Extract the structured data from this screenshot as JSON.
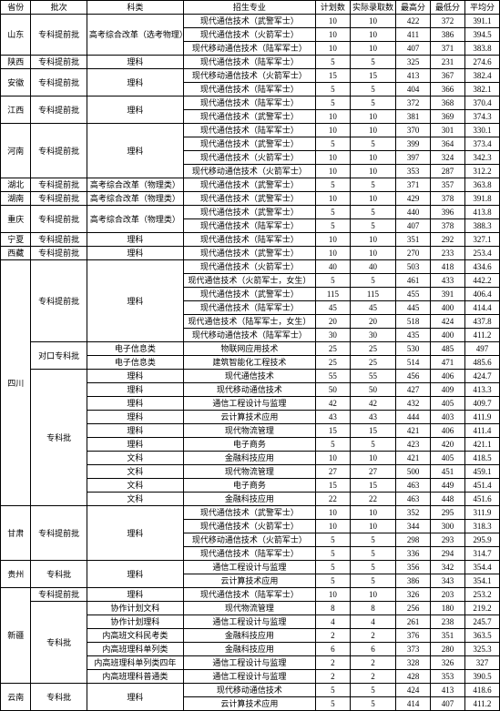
{
  "header": [
    "省份",
    "批次",
    "科类",
    "招生专业",
    "计划数",
    "实际录取数",
    "最高分",
    "最低分",
    "平均分"
  ],
  "rows": [
    [
      "山东",
      "专科提前批",
      "高考综合改革（选考物理）",
      "现代通信技术（武警军士）",
      "10",
      "10",
      "422",
      "372",
      "391.1"
    ],
    [
      "",
      "",
      "",
      "现代通信技术（火箭军士）",
      "10",
      "10",
      "411",
      "386",
      "394.5"
    ],
    [
      "",
      "",
      "",
      "现代移动通信技术（陆军军士）",
      "10",
      "10",
      "407",
      "371",
      "383.8"
    ],
    [
      "陕西",
      "专科提前批",
      "理科",
      "现代通信技术（陆军军士）",
      "5",
      "5",
      "325",
      "231",
      "274.6"
    ],
    [
      "安徽",
      "专科提前批",
      "理科",
      "现代移动通信技术（火箭军士）",
      "15",
      "15",
      "413",
      "367",
      "382.4"
    ],
    [
      "",
      "",
      "",
      "现代通信技术（陆军军士）",
      "5",
      "5",
      "404",
      "366",
      "382.1"
    ],
    [
      "江西",
      "专科提前批",
      "理科",
      "现代通信技术（陆军军士）",
      "5",
      "5",
      "372",
      "368",
      "370.4"
    ],
    [
      "",
      "",
      "",
      "现代通信技术（武警军士）",
      "10",
      "10",
      "381",
      "369",
      "374.3"
    ],
    [
      "河南",
      "专科提前批",
      "理科",
      "现代通信技术（陆军军士）",
      "10",
      "10",
      "370",
      "301",
      "330.1"
    ],
    [
      "",
      "",
      "",
      "现代通信技术（武警军士）",
      "5",
      "5",
      "399",
      "364",
      "373.4"
    ],
    [
      "",
      "",
      "",
      "现代通信技术（火箭军士）",
      "10",
      "10",
      "397",
      "324",
      "342.3"
    ],
    [
      "",
      "",
      "",
      "现代移动通信技术（火箭军士）",
      "10",
      "10",
      "353",
      "287",
      "312.2"
    ],
    [
      "湖北",
      "专科提前批",
      "高考综合改革（物理类）",
      "现代通信技术（武警军士）",
      "5",
      "5",
      "371",
      "357",
      "363.8"
    ],
    [
      "湖南",
      "专科提前批",
      "高考综合改革（物理类）",
      "现代通信技术（武警军士）",
      "10",
      "10",
      "429",
      "378",
      "391.8"
    ],
    [
      "重庆",
      "专科提前批",
      "高考综合改革（物理类）",
      "现代通信技术（武警军士）",
      "5",
      "5",
      "440",
      "396",
      "413.8"
    ],
    [
      "",
      "",
      "",
      "现代通信技术（陆军军士）",
      "5",
      "5",
      "407",
      "378",
      "388.3"
    ],
    [
      "宁夏",
      "专科提前批",
      "理科",
      "现代通信技术（陆军军士）",
      "10",
      "10",
      "351",
      "292",
      "327.1"
    ],
    [
      "西藏",
      "专科提前批",
      "理科",
      "现代通信技术（武警军士）",
      "10",
      "10",
      "270",
      "233",
      "253.4"
    ],
    [
      "四川",
      "专科提前批",
      "理科",
      "现代通信技术（火箭军士）",
      "40",
      "40",
      "503",
      "418",
      "434.6"
    ],
    [
      "",
      "",
      "",
      "现代通信技术（火箭军士，女生）",
      "5",
      "5",
      "461",
      "433",
      "442.2"
    ],
    [
      "",
      "",
      "",
      "现代通信技术（武警军士）",
      "115",
      "115",
      "455",
      "391",
      "406.4"
    ],
    [
      "",
      "",
      "",
      "现代通信技术（陆军军士）",
      "45",
      "45",
      "445",
      "400",
      "414.4"
    ],
    [
      "",
      "",
      "",
      "现代通信技术（陆军军士，女生）",
      "20",
      "20",
      "518",
      "424",
      "437.8"
    ],
    [
      "",
      "",
      "",
      "现代移动通信技术（陆军军士）",
      "30",
      "30",
      "435",
      "400",
      "411.2"
    ],
    [
      "",
      "对口专科批",
      "电子信息类",
      "物联网应用技术",
      "25",
      "25",
      "530",
      "485",
      "497"
    ],
    [
      "",
      "",
      "电子信息类",
      "建筑智能化工程技术",
      "25",
      "25",
      "514",
      "471",
      "485.6"
    ],
    [
      "",
      "专科批",
      "理科",
      "现代通信技术",
      "55",
      "55",
      "456",
      "406",
      "424.7"
    ],
    [
      "",
      "",
      "理科",
      "现代移动通信技术",
      "50",
      "50",
      "427",
      "409",
      "413.3"
    ],
    [
      "",
      "",
      "理科",
      "通信工程设计与监理",
      "42",
      "42",
      "432",
      "405",
      "409.7"
    ],
    [
      "",
      "",
      "理科",
      "云计算技术应用",
      "43",
      "43",
      "444",
      "403",
      "411.9"
    ],
    [
      "",
      "",
      "理科",
      "现代物流管理",
      "15",
      "15",
      "421",
      "406",
      "411.4"
    ],
    [
      "",
      "",
      "理科",
      "电子商务",
      "5",
      "5",
      "423",
      "420",
      "421.1"
    ],
    [
      "",
      "",
      "文科",
      "金融科技应用",
      "10",
      "10",
      "421",
      "405",
      "418.5"
    ],
    [
      "",
      "",
      "文科",
      "现代物流管理",
      "27",
      "27",
      "500",
      "451",
      "459.1"
    ],
    [
      "",
      "",
      "文科",
      "电子商务",
      "15",
      "15",
      "463",
      "449",
      "451.4"
    ],
    [
      "",
      "",
      "文科",
      "金融科技应用",
      "22",
      "22",
      "463",
      "448",
      "451.6"
    ],
    [
      "甘肃",
      "专科提前批",
      "理科",
      "现代通信技术（武警军士）",
      "10",
      "10",
      "352",
      "295",
      "311.9"
    ],
    [
      "",
      "",
      "",
      "现代通信技术（火箭军士）",
      "10",
      "10",
      "344",
      "300",
      "318.3"
    ],
    [
      "",
      "",
      "",
      "现代移动通信技术（火箭军士）",
      "5",
      "5",
      "298",
      "293",
      "295.9"
    ],
    [
      "",
      "",
      "",
      "现代通信技术（陆军军士）",
      "5",
      "5",
      "336",
      "294",
      "314.7"
    ],
    [
      "贵州",
      "专科批",
      "理科",
      "通信工程设计与监理",
      "5",
      "5",
      "356",
      "342",
      "354.4"
    ],
    [
      "",
      "",
      "",
      "云计算技术应用",
      "5",
      "5",
      "386",
      "343",
      "354.1"
    ],
    [
      "新疆",
      "专科提前批",
      "理科",
      "现代通信技术（陆军军士）",
      "10",
      "10",
      "326",
      "203",
      "253.2"
    ],
    [
      "",
      "专科批",
      "协作计划文科",
      "现代物流管理",
      "8",
      "8",
      "256",
      "180",
      "219.2"
    ],
    [
      "",
      "",
      "协作计划理科",
      "通信工程设计与监理",
      "4",
      "4",
      "261",
      "238",
      "245.7"
    ],
    [
      "",
      "",
      "内高班文科民考类",
      "金融科技应用",
      "2",
      "2",
      "376",
      "351",
      "363.5"
    ],
    [
      "",
      "",
      "内高班理科单列类",
      "金融科技应用",
      "6",
      "6",
      "373",
      "280",
      "325.3"
    ],
    [
      "",
      "",
      "内高班理科单列类四年",
      "通信工程设计与监理",
      "2",
      "2",
      "328",
      "326",
      "327"
    ],
    [
      "",
      "",
      "内高班理科普通类",
      "通信工程设计与监理",
      "2",
      "2",
      "428",
      "353",
      "390.5"
    ],
    [
      "云南",
      "专科批",
      "理科",
      "现代移动通信技术",
      "5",
      "5",
      "424",
      "413",
      "418.6"
    ],
    [
      "",
      "",
      "",
      "云计算技术应用",
      "5",
      "5",
      "414",
      "407",
      "411.2"
    ]
  ]
}
